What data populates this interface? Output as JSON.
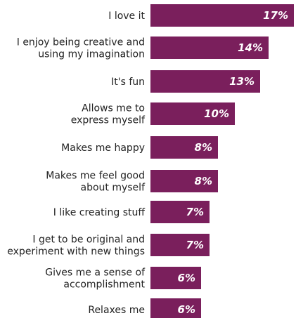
{
  "chart_data": {
    "type": "bar",
    "orientation": "horizontal",
    "categories": [
      "I love it",
      "I enjoy being creative and using my imagination",
      "It's fun",
      "Allows me to express myself",
      "Makes me happy",
      "Makes me feel good about myself",
      "I like creating stuff",
      "I get to be original and experiment with new things",
      "Gives me a sense of accomplishment",
      "Relaxes me"
    ],
    "category_lines": [
      [
        "I love it"
      ],
      [
        "I enjoy being creative and",
        "using my imagination"
      ],
      [
        "It's fun"
      ],
      [
        "Allows me to",
        "express myself"
      ],
      [
        "Makes me happy"
      ],
      [
        "Makes me feel good",
        "about myself"
      ],
      [
        "I like creating stuff"
      ],
      [
        "I get to be original and",
        "experiment with new things"
      ],
      [
        "Gives me a sense of",
        "accomplishment"
      ],
      [
        "Relaxes me"
      ]
    ],
    "values": [
      17,
      14,
      13,
      10,
      8,
      8,
      7,
      7,
      6,
      6
    ],
    "value_labels": [
      "17%",
      "14%",
      "13%",
      "10%",
      "8%",
      "8%",
      "7%",
      "7%",
      "6%",
      "6%"
    ],
    "unit": "%",
    "xlim": [
      0,
      17
    ],
    "bar_color": "#7a1f5c",
    "grid": false,
    "legend": "none"
  }
}
